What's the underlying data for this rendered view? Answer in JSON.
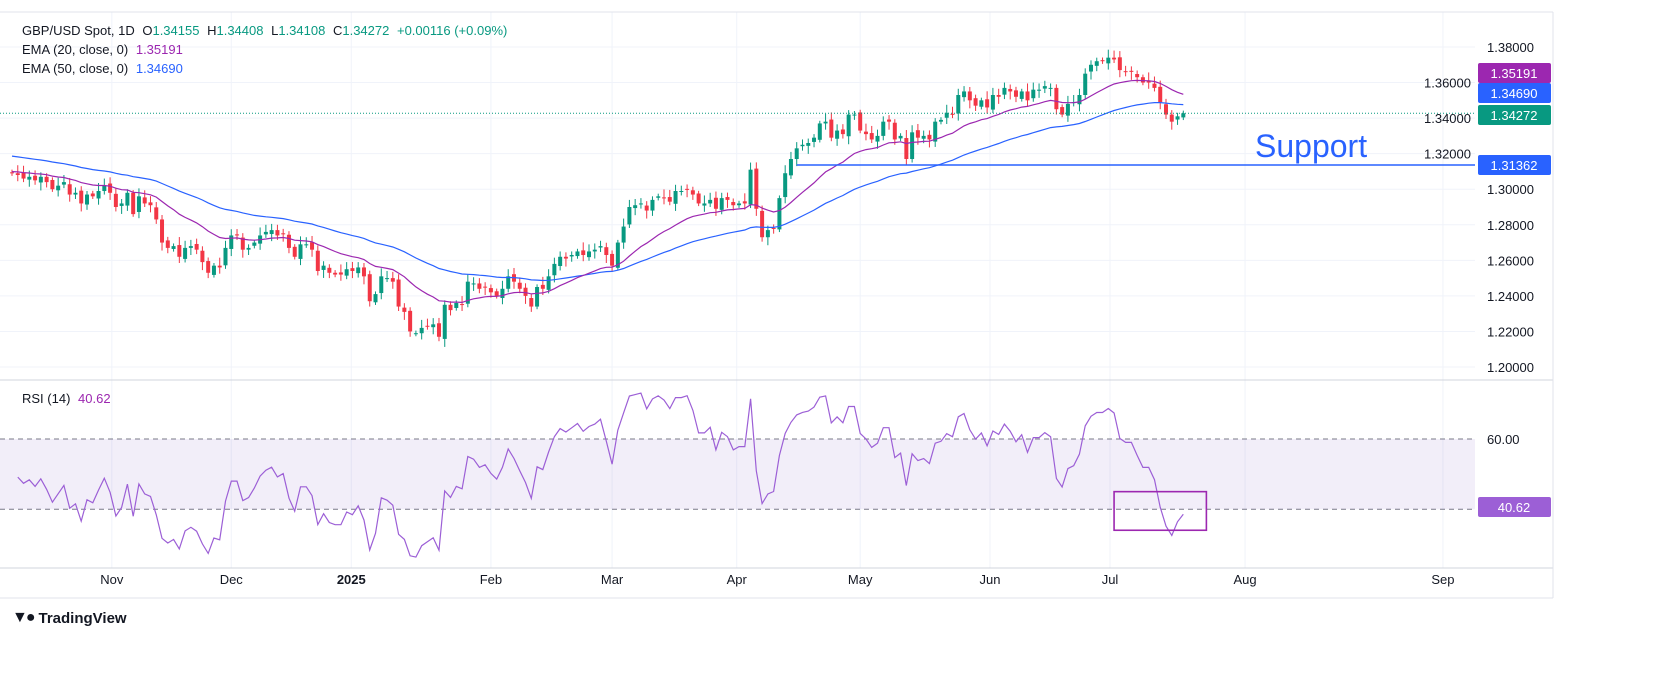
{
  "header": {
    "symbol": "GBP/USD Spot, 1D",
    "open_label": "O",
    "open": "1.34155",
    "high_label": "H",
    "high": "1.34408",
    "low_label": "L",
    "low": "1.34108",
    "close_label": "C",
    "close": "1.34272",
    "change": "+0.00116 (+0.09%)"
  },
  "indicators": {
    "ema20_label": "EMA (20, close, 0)",
    "ema20_value": "1.35191",
    "ema50_label": "EMA (50, close, 0)",
    "ema50_value": "1.34690",
    "rsi_label": "RSI (14)",
    "rsi_value": "40.62"
  },
  "annotation": {
    "support_text": "Support",
    "support_level": 1.31362,
    "support_label": "1.31362",
    "support_start_index": 136
  },
  "price_labels": {
    "ema20": "1.35191",
    "ema50": "1.34690",
    "last": "1.34272",
    "rsi": "40.62",
    "rsi_upper": "60.00"
  },
  "brand": "TradingView",
  "colors": {
    "up": "#089981",
    "down": "#f23645",
    "ema20": "#9c27b0",
    "ema50": "#2962ff",
    "support": "#2962ff",
    "rsi": "#9c5fd6"
  },
  "chart_data": {
    "type": "candlestick",
    "title": "GBP/USD Spot, 1D",
    "xlabel": "",
    "ylabel": "",
    "ylim": [
      1.195,
      1.385
    ],
    "yticks": [
      "1.38000",
      "1.36000",
      "1.34000",
      "1.32000",
      "1.30000",
      "1.28000",
      "1.26000",
      "1.24000",
      "1.22000",
      "1.20000"
    ],
    "xticks": [
      {
        "label": "Nov",
        "index": 17.3
      },
      {
        "label": "Dec",
        "index": 38
      },
      {
        "label": "2025",
        "index": 58.8
      },
      {
        "label": "Feb",
        "index": 83
      },
      {
        "label": "Mar",
        "index": 104
      },
      {
        "label": "Apr",
        "index": 125.6
      },
      {
        "label": "May",
        "index": 147
      },
      {
        "label": "Jun",
        "index": 169.5
      },
      {
        "label": "Jul",
        "index": 190.3
      },
      {
        "label": "Aug",
        "index": 213.7
      },
      {
        "label": "Sep",
        "index": 248
      }
    ],
    "first_open": 1.3095,
    "closes": [
      1.309,
      1.308,
      1.306,
      1.307,
      1.305,
      1.307,
      1.304,
      1.3,
      1.302,
      1.304,
      1.297,
      1.298,
      1.292,
      1.297,
      1.296,
      1.299,
      1.302,
      1.298,
      1.29,
      1.292,
      1.298,
      1.286,
      1.296,
      1.292,
      1.291,
      1.283,
      1.27,
      1.267,
      1.268,
      1.262,
      1.267,
      1.268,
      1.266,
      1.259,
      1.253,
      1.257,
      1.256,
      1.267,
      1.274,
      1.274,
      1.266,
      1.267,
      1.27,
      1.274,
      1.276,
      1.277,
      1.274,
      1.275,
      1.267,
      1.262,
      1.269,
      1.269,
      1.266,
      1.254,
      1.257,
      1.253,
      1.252,
      1.252,
      1.255,
      1.254,
      1.256,
      1.251,
      1.237,
      1.241,
      1.251,
      1.25,
      1.248,
      1.234,
      1.231,
      1.22,
      1.219,
      1.222,
      1.223,
      1.224,
      1.217,
      1.235,
      1.232,
      1.236,
      1.235,
      1.248,
      1.247,
      1.244,
      1.245,
      1.242,
      1.24,
      1.244,
      1.251,
      1.248,
      1.244,
      1.24,
      1.234,
      1.245,
      1.244,
      1.251,
      1.258,
      1.262,
      1.261,
      1.263,
      1.265,
      1.263,
      1.265,
      1.266,
      1.268,
      1.263,
      1.257,
      1.27,
      1.279,
      1.29,
      1.291,
      1.292,
      1.288,
      1.294,
      1.296,
      1.295,
      1.293,
      1.299,
      1.299,
      1.3,
      1.297,
      1.292,
      1.292,
      1.294,
      1.289,
      1.295,
      1.294,
      1.291,
      1.292,
      1.292,
      1.311,
      1.289,
      1.273,
      1.277,
      1.278,
      1.295,
      1.309,
      1.317,
      1.323,
      1.325,
      1.326,
      1.329,
      1.337,
      1.338,
      1.329,
      1.333,
      1.331,
      1.342,
      1.342,
      1.333,
      1.331,
      1.328,
      1.33,
      1.338,
      1.338,
      1.328,
      1.33,
      1.317,
      1.332,
      1.329,
      1.33,
      1.328,
      1.338,
      1.339,
      1.343,
      1.342,
      1.353,
      1.355,
      1.35,
      1.347,
      1.35,
      1.346,
      1.353,
      1.352,
      1.357,
      1.355,
      1.352,
      1.355,
      1.35,
      1.356,
      1.356,
      1.358,
      1.357,
      1.345,
      1.342,
      1.348,
      1.349,
      1.353,
      1.365,
      1.37,
      1.372,
      1.372,
      1.374,
      1.373,
      1.367,
      1.366,
      1.366,
      1.363,
      1.36,
      1.36,
      1.357,
      1.349,
      1.342,
      1.338,
      1.341,
      1.34272
    ],
    "ema20_seed": 1.31,
    "ema50_seed": 1.319,
    "rsi": {
      "period": 14,
      "upper": 60,
      "lower": 40,
      "ylim": [
        20,
        90
      ]
    },
    "rsi_box": {
      "start_index": 191,
      "end_index": 207,
      "low": 34,
      "high": 45
    }
  }
}
